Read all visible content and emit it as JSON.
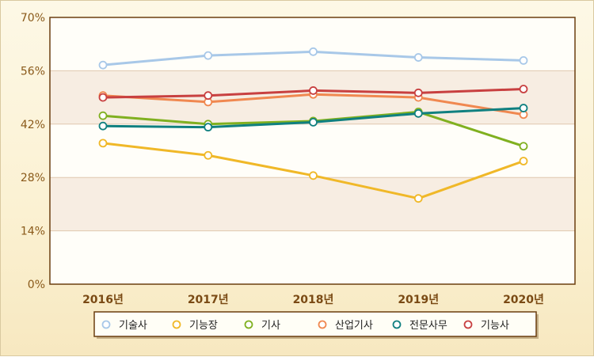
{
  "chart_data": {
    "type": "line",
    "categories": [
      "2016년",
      "2017년",
      "2018년",
      "2019년",
      "2020년"
    ],
    "yticks": [
      "0%",
      "14%",
      "28%",
      "42%",
      "56%",
      "70%"
    ],
    "ylim": [
      0,
      70
    ],
    "grid": true,
    "legend_position": "bottom",
    "series": [
      {
        "name": "기술사",
        "color": "#a8c8e8",
        "values": [
          57.5,
          60.0,
          61.0,
          59.5,
          58.7
        ]
      },
      {
        "name": "기능장",
        "color": "#f0b828",
        "values": [
          37.0,
          33.8,
          28.5,
          22.5,
          32.3
        ]
      },
      {
        "name": "기사",
        "color": "#80b020",
        "values": [
          44.2,
          42.0,
          42.8,
          45.2,
          36.2
        ]
      },
      {
        "name": "산업기사",
        "color": "#f08850",
        "values": [
          49.5,
          47.8,
          49.8,
          49.0,
          44.5
        ]
      },
      {
        "name": "전문사무",
        "color": "#108080",
        "values": [
          41.5,
          41.2,
          42.5,
          44.8,
          46.2
        ]
      },
      {
        "name": "기능사",
        "color": "#c84040",
        "values": [
          49.0,
          49.5,
          50.8,
          50.2,
          51.2
        ]
      }
    ]
  }
}
